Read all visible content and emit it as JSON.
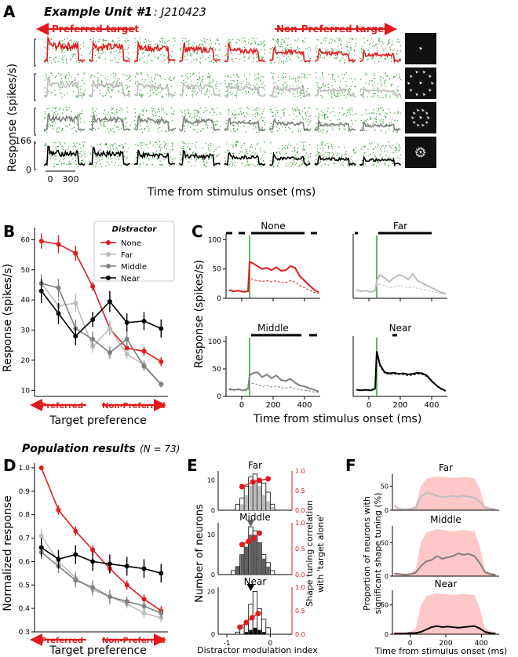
{
  "header": {
    "panel": "A",
    "title_bold": "Example Unit #1",
    "title_rest": ": J210423"
  },
  "panelA": {
    "preferred_label": "Preferred target",
    "nonpreferred_label": "Non-Preferred target",
    "ylabel": "Response (spikes/s)",
    "xlabel": "Time from stimulus onset (ms)",
    "y_ticks": [
      "166",
      "0"
    ],
    "x_ticks": [
      "0",
      "300"
    ],
    "n_targets": 8,
    "rows": [
      {
        "condition": "None",
        "color": "#e31a1c"
      },
      {
        "condition": "Far",
        "color": "#bdbdbd"
      },
      {
        "condition": "Middle",
        "color": "#808080"
      },
      {
        "condition": "Near",
        "color": "#000000"
      }
    ],
    "raster_color": "#2ca02c"
  },
  "panelB": {
    "panel": "B",
    "xlabel": "Target preference",
    "ylabel": "Response (spikes/s)",
    "preferred_label": "Preferred",
    "nonpreferred_label": "Non-Preferred",
    "legend_title": "Distractor",
    "y_ticks": [
      "60",
      "50",
      "40",
      "30",
      "20",
      "10"
    ]
  },
  "panelC": {
    "panel": "C",
    "ylabel": "Response (spikes/s)",
    "xlabel": "Time from stimulus onset (ms)",
    "titles": [
      "None",
      "Far",
      "Middle",
      "Near"
    ],
    "y_ticks": [
      "100",
      "50",
      "0"
    ],
    "x_ticks": [
      "0",
      "200",
      "400"
    ]
  },
  "population": {
    "title": "Population results",
    "n": "(N = 73)"
  },
  "panelD": {
    "panel": "D",
    "xlabel": "Target preference",
    "ylabel": "Normalized response",
    "preferred_label": "Preferred",
    "nonpreferred_label": "Non-Preferred",
    "y_ticks": [
      "1.0",
      "0.9",
      "0.8",
      "0.7",
      "0.6",
      "0.5",
      "0.4",
      "0.3"
    ]
  },
  "panelE": {
    "panel": "E",
    "titles": [
      "Far",
      "Middle",
      "Near"
    ],
    "ylabel": "Number of neurons",
    "ylabel_right_1": "Shape tuning correlation",
    "ylabel_right_2": "with 'target alone'",
    "xlabel": "Distractor modulation index",
    "x_ticks": [
      "-1",
      "0"
    ],
    "left_ticks": [
      "10",
      "0"
    ],
    "right_ticks": [
      "1.0",
      "0.5",
      "0.0"
    ]
  },
  "panelF": {
    "panel": "F",
    "titles": [
      "Far",
      "Middle",
      "Near"
    ],
    "ylabel_1": "Proportion of neurons with",
    "ylabel_2": "significant shape tuning (%)",
    "xlabel": "Time from stimulus onset (ms)",
    "y_ticks": [
      "50",
      "0"
    ],
    "x_ticks": [
      "0",
      "200",
      "400"
    ]
  },
  "chart_data": [
    {
      "type": "line",
      "panel": "B",
      "xlabel": "Target preference",
      "ylabel": "Response (spikes/s)",
      "ylim": [
        8,
        64
      ],
      "legend_position": "top-right",
      "x": [
        1,
        2,
        3,
        4,
        5,
        6,
        7,
        8
      ],
      "series": [
        {
          "name": "None",
          "color": "#e31a1c",
          "values": [
            59.5,
            58.5,
            55.5,
            44.5,
            30.5,
            24,
            23,
            19.5
          ],
          "err": [
            2.5,
            3.0,
            2.5,
            1.5,
            2.0,
            2.0,
            1.5,
            1.5
          ]
        },
        {
          "name": "Far",
          "color": "#bdbdbd",
          "values": [
            45.5,
            38,
            39,
            24.5,
            30.5,
            22,
            18.5,
            12
          ],
          "err": [
            2.5,
            3.0,
            3.0,
            2.0,
            2.5,
            1.5,
            1.5,
            1.0
          ]
        },
        {
          "name": "Middle",
          "color": "#808080",
          "values": [
            45.5,
            44,
            30.5,
            27,
            22.5,
            27,
            18,
            12
          ],
          "err": [
            3.0,
            3.0,
            3.0,
            2.5,
            2.0,
            2.5,
            1.5,
            1.0
          ]
        },
        {
          "name": "Near",
          "color": "#000000",
          "values": [
            43,
            35.5,
            28,
            33.5,
            39.5,
            32.5,
            33,
            30.5
          ],
          "err": [
            4.0,
            3.5,
            3.0,
            2.5,
            3.5,
            3.0,
            3.0,
            3.0
          ]
        }
      ]
    },
    {
      "type": "line",
      "panel": "C",
      "xlabel": "Time from stimulus onset (ms)",
      "ylabel": "Response (spikes/s)",
      "xlim": [
        -100,
        500
      ],
      "ylim": [
        0,
        110
      ],
      "subplots": [
        {
          "title": "None",
          "color": "#e31a1c",
          "x": [
            -80,
            -50,
            -20,
            10,
            40,
            50,
            70,
            100,
            130,
            160,
            190,
            220,
            250,
            280,
            310,
            340,
            370,
            400,
            430,
            460,
            490
          ],
          "solid": [
            14,
            12,
            13,
            11,
            12,
            62,
            60,
            55,
            50,
            52,
            48,
            53,
            47,
            48,
            55,
            52,
            38,
            30,
            22,
            15,
            10
          ],
          "dashed": [
            14,
            12,
            13,
            11,
            12,
            36,
            32,
            30,
            29,
            30,
            28,
            30,
            27,
            27,
            30,
            28,
            22,
            18,
            14,
            10,
            8
          ]
        },
        {
          "title": "Far",
          "color": "#bdbdbd",
          "x": [
            -80,
            -50,
            -20,
            10,
            40,
            50,
            70,
            100,
            130,
            160,
            190,
            220,
            250,
            280,
            310,
            340,
            370,
            400,
            430,
            460,
            490
          ],
          "solid": [
            14,
            12,
            13,
            11,
            13,
            30,
            40,
            35,
            28,
            35,
            40,
            38,
            32,
            42,
            30,
            26,
            22,
            18,
            14,
            10,
            8
          ],
          "dashed": [
            14,
            12,
            13,
            11,
            12,
            22,
            24,
            22,
            18,
            20,
            22,
            20,
            18,
            20,
            17,
            15,
            14,
            12,
            10,
            8,
            7
          ]
        },
        {
          "title": "Middle",
          "color": "#808080",
          "x": [
            -80,
            -50,
            -20,
            10,
            40,
            50,
            70,
            100,
            130,
            160,
            190,
            220,
            250,
            280,
            310,
            340,
            370,
            400,
            430,
            460,
            490
          ],
          "solid": [
            14,
            12,
            13,
            11,
            14,
            38,
            42,
            44,
            35,
            40,
            33,
            38,
            30,
            28,
            32,
            25,
            20,
            18,
            15,
            12,
            9
          ],
          "dashed": [
            12,
            11,
            12,
            10,
            11,
            22,
            24,
            22,
            18,
            20,
            17,
            19,
            16,
            15,
            17,
            14,
            12,
            11,
            10,
            8,
            7
          ]
        },
        {
          "title": "Near",
          "color": "#000000",
          "x": [
            -80,
            -50,
            -20,
            10,
            40,
            50,
            70,
            100,
            130,
            160,
            190,
            220,
            250,
            280,
            310,
            340,
            370,
            400,
            430,
            460,
            490
          ],
          "solid": [
            12,
            11,
            12,
            11,
            14,
            82,
            58,
            44,
            42,
            43,
            41,
            42,
            40,
            41,
            43,
            42,
            38,
            28,
            20,
            14,
            10
          ],
          "dashed": [
            12,
            11,
            12,
            10,
            13,
            78,
            55,
            42,
            40,
            41,
            40,
            40,
            38,
            39,
            41,
            40,
            36,
            27,
            19,
            13,
            9
          ]
        }
      ]
    },
    {
      "type": "line",
      "panel": "D",
      "xlabel": "Target preference",
      "ylabel": "Normalized response",
      "ylim": [
        0.3,
        1.02
      ],
      "x": [
        1,
        2,
        3,
        4,
        5,
        6,
        7,
        8
      ],
      "series": [
        {
          "name": "None",
          "color": "#e31a1c",
          "values": [
            1.0,
            0.82,
            0.73,
            0.65,
            0.57,
            0.5,
            0.44,
            0.39
          ],
          "err": [
            0.0,
            0.02,
            0.02,
            0.02,
            0.02,
            0.02,
            0.02,
            0.02
          ]
        },
        {
          "name": "Far",
          "color": "#bdbdbd",
          "values": [
            0.71,
            0.6,
            0.53,
            0.48,
            0.45,
            0.42,
            0.38,
            0.36
          ],
          "err": [
            0.03,
            0.03,
            0.03,
            0.03,
            0.03,
            0.02,
            0.02,
            0.02
          ]
        },
        {
          "name": "Middle",
          "color": "#808080",
          "values": [
            0.64,
            0.58,
            0.52,
            0.49,
            0.45,
            0.43,
            0.41,
            0.38
          ],
          "err": [
            0.03,
            0.03,
            0.03,
            0.03,
            0.03,
            0.02,
            0.02,
            0.02
          ]
        },
        {
          "name": "Near",
          "color": "#000000",
          "values": [
            0.66,
            0.61,
            0.63,
            0.6,
            0.59,
            0.58,
            0.57,
            0.55
          ],
          "err": [
            0.04,
            0.04,
            0.04,
            0.04,
            0.04,
            0.04,
            0.04,
            0.04
          ]
        }
      ]
    },
    {
      "type": "bar",
      "panel": "E",
      "xlabel": "Distractor modulation index",
      "ylabel": "Number of neurons",
      "xlim": [
        -1.2,
        0.5
      ],
      "bin_edges": [
        -0.9,
        -0.8,
        -0.7,
        -0.6,
        -0.5,
        -0.4,
        -0.3,
        -0.2,
        -0.1,
        0.0,
        0.1
      ],
      "subplots": [
        {
          "title": "Far",
          "color": "#bdbdbd",
          "ylim": [
            0,
            13
          ],
          "total": [
            0,
            2,
            4,
            8,
            11,
            12,
            10,
            9,
            6,
            2
          ],
          "significant": [
            0,
            0,
            2,
            5,
            8,
            10,
            8,
            5,
            3,
            1
          ],
          "correlation_x": [
            -0.65,
            -0.4,
            -0.25,
            -0.05
          ],
          "correlation": [
            0.6,
            0.72,
            0.76,
            0.8
          ],
          "correlation_ylim": [
            0,
            1.0
          ]
        },
        {
          "title": "Middle",
          "color": "#606060",
          "ylim": [
            0,
            13
          ],
          "total": [
            1,
            2,
            5,
            8,
            12,
            11,
            8,
            5,
            3,
            1
          ],
          "significant": [
            0,
            2,
            5,
            7,
            10,
            10,
            8,
            4,
            2,
            0
          ],
          "marker_x": -0.45,
          "correlation_x": [
            -0.65,
            -0.5,
            -0.38,
            -0.25
          ],
          "correlation": [
            0.58,
            0.64,
            0.7,
            0.8
          ],
          "correlation_ylim": [
            0,
            1.0
          ]
        },
        {
          "title": "Near",
          "color": "#000000",
          "ylim": [
            0,
            22
          ],
          "total": [
            0,
            1,
            3,
            6,
            14,
            20,
            12,
            7,
            3,
            0
          ],
          "significant": [
            0,
            0,
            0,
            1,
            2,
            3,
            2,
            1,
            0,
            0
          ],
          "marker_x": -0.45,
          "correlation_x": [
            -0.7,
            -0.55,
            -0.42,
            -0.28
          ],
          "correlation": [
            0.15,
            0.25,
            0.35,
            0.44
          ],
          "correlation_ylim": [
            0,
            1.0
          ]
        }
      ]
    },
    {
      "type": "area",
      "panel": "F",
      "xlabel": "Time from stimulus onset (ms)",
      "ylabel": "Proportion of neurons with significant shape tuning (%)",
      "xlim": [
        -100,
        500
      ],
      "ylim": [
        0,
        75
      ],
      "x": [
        -90,
        -60,
        -30,
        0,
        30,
        60,
        90,
        120,
        150,
        180,
        210,
        240,
        270,
        300,
        330,
        360,
        390,
        420,
        450,
        480
      ],
      "band_color": "#ffc8c8",
      "band": [
        4,
        4,
        4,
        4,
        10,
        50,
        65,
        68,
        70,
        69,
        68,
        67,
        68,
        69,
        68,
        67,
        45,
        10,
        5,
        4
      ],
      "subplots": [
        {
          "title": "Far",
          "color": "#bdbdbd",
          "values": [
            10,
            3,
            2,
            3,
            4,
            28,
            36,
            34,
            30,
            27,
            28,
            30,
            28,
            30,
            28,
            26,
            18,
            5,
            3,
            2
          ]
        },
        {
          "title": "Middle",
          "color": "#808080",
          "values": [
            4,
            3,
            2,
            3,
            5,
            15,
            22,
            24,
            30,
            26,
            28,
            30,
            34,
            32,
            33,
            30,
            20,
            6,
            3,
            2
          ]
        },
        {
          "title": "Near",
          "color": "#000000",
          "values": [
            1,
            1,
            1,
            2,
            2,
            4,
            8,
            12,
            14,
            12,
            13,
            12,
            11,
            12,
            13,
            14,
            10,
            4,
            2,
            1
          ]
        }
      ]
    }
  ]
}
